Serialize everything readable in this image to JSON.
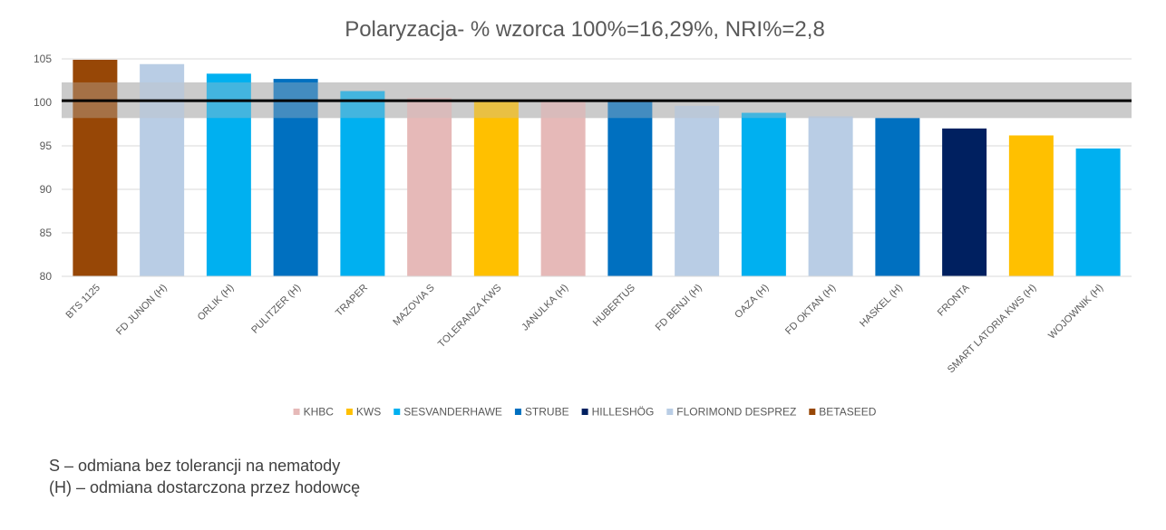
{
  "chart_data": {
    "type": "bar",
    "title": "Polaryzacja- % wzorca 100%=16,29%, NRI%=2,8",
    "xlabel": "",
    "ylabel": "",
    "ylim": [
      80,
      105
    ],
    "yticks": [
      80,
      85,
      90,
      95,
      100,
      105
    ],
    "grid": true,
    "legend_position": "bottom",
    "reference_line": 100.2,
    "reference_band": [
      98.2,
      102.3
    ],
    "categories": [
      "BTS 1125",
      "FD JUNON (H)",
      "ORLIK (H)",
      "PULITZER (H)",
      "TRAPER",
      "MAZOVIA S",
      "TOLERANZA KWS",
      "JANULKA (H)",
      "HUBERTUS",
      "FD BENJI (H)",
      "OAZA (H)",
      "FD OKTAN (H)",
      "HASKEL (H)",
      "FRONTA",
      "SMART LATORIA KWS (H)",
      "WOJOWNIK (H)"
    ],
    "values": [
      104.9,
      104.4,
      103.3,
      102.7,
      101.3,
      100.5,
      100.3,
      100.2,
      100.1,
      99.6,
      98.8,
      98.4,
      98.2,
      97.0,
      96.2,
      94.7
    ],
    "breeders": [
      "BETASEED",
      "FLORIMOND DESPREZ",
      "SESVANDERHAWE",
      "STRUBE",
      "SESVANDERHAWE",
      "KHBC",
      "KWS",
      "KHBC",
      "STRUBE",
      "FLORIMOND DESPREZ",
      "SESVANDERHAWE",
      "FLORIMOND DESPREZ",
      "STRUBE",
      "HILLESHÖG",
      "KWS",
      "SESVANDERHAWE"
    ],
    "legend": [
      {
        "name": "KHBC",
        "color": "#e6b9b8"
      },
      {
        "name": "KWS",
        "color": "#ffc000"
      },
      {
        "name": "SESVANDERHAWE",
        "color": "#00b0f0"
      },
      {
        "name": "STRUBE",
        "color": "#0070c0"
      },
      {
        "name": "HILLESHÖG",
        "color": "#002060"
      },
      {
        "name": "FLORIMOND DESPREZ",
        "color": "#b9cde5"
      },
      {
        "name": "BETASEED",
        "color": "#974706"
      }
    ]
  },
  "notes": {
    "line1": "S – odmiana bez tolerancji na nematody",
    "line2": "(H) – odmiana dostarczona przez hodowcę"
  }
}
